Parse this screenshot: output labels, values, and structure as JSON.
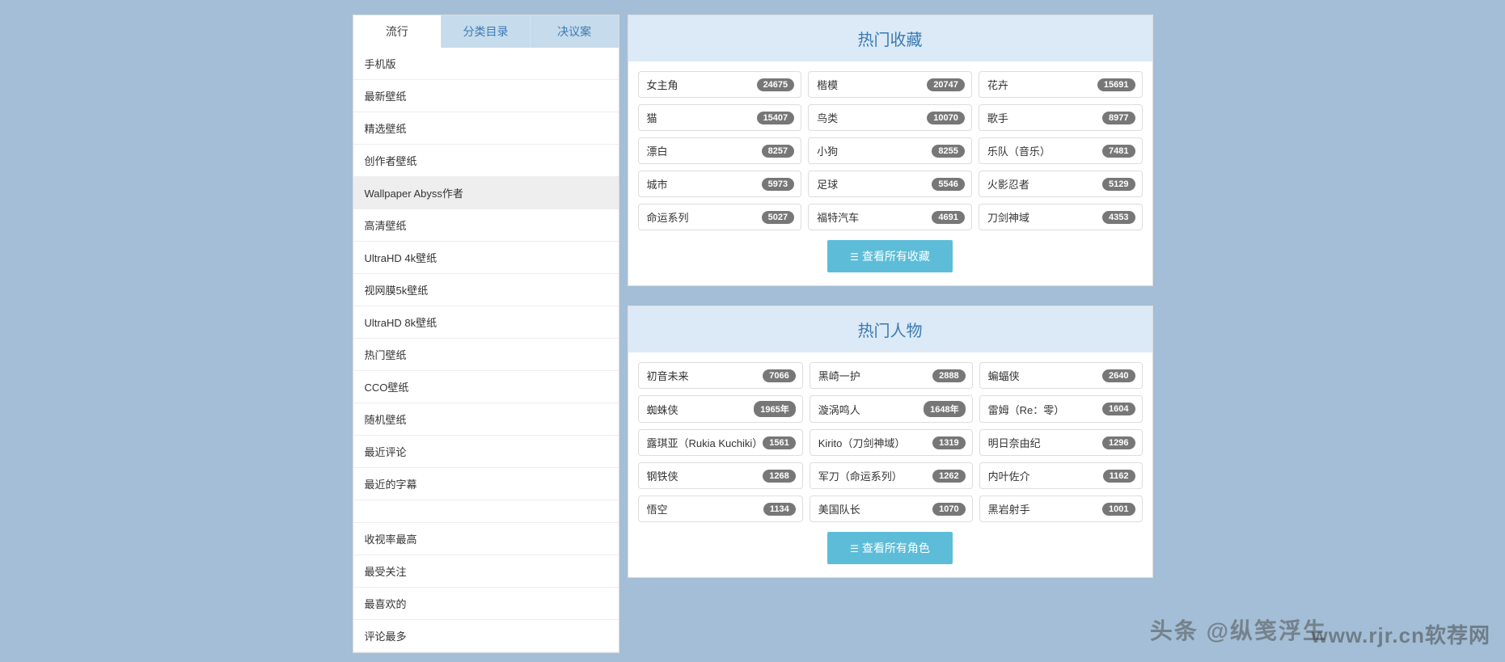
{
  "tabs": [
    {
      "label": "流行",
      "active": true
    },
    {
      "label": "分类目录",
      "active": false
    },
    {
      "label": "决议案",
      "active": false
    }
  ],
  "nav": [
    {
      "label": "手机版",
      "type": "item"
    },
    {
      "label": "最新壁纸",
      "type": "item"
    },
    {
      "label": "精选壁纸",
      "type": "item"
    },
    {
      "label": "创作者壁纸",
      "type": "item"
    },
    {
      "label": "Wallpaper Abyss作者",
      "type": "item",
      "hover": true
    },
    {
      "label": "高清壁纸",
      "type": "item"
    },
    {
      "label": "UltraHD 4k壁纸",
      "type": "item"
    },
    {
      "label": "视网膜5k壁纸",
      "type": "item"
    },
    {
      "label": "UltraHD 8k壁纸",
      "type": "item"
    },
    {
      "label": "热门壁纸",
      "type": "item"
    },
    {
      "label": "CCO壁纸",
      "type": "item"
    },
    {
      "label": "随机壁纸",
      "type": "item"
    },
    {
      "label": "最近评论",
      "type": "item"
    },
    {
      "label": "最近的字幕",
      "type": "item"
    },
    {
      "type": "spacer"
    },
    {
      "label": "收视率最高",
      "type": "item"
    },
    {
      "label": "最受关注",
      "type": "item"
    },
    {
      "label": "最喜欢的",
      "type": "item"
    },
    {
      "label": "评论最多",
      "type": "item"
    }
  ],
  "panels": [
    {
      "title": "热门收藏",
      "items": [
        {
          "label": "女主角",
          "count": "24675"
        },
        {
          "label": "楷模",
          "count": "20747"
        },
        {
          "label": "花卉",
          "count": "15691"
        },
        {
          "label": "猫",
          "count": "15407"
        },
        {
          "label": "鸟类",
          "count": "10070"
        },
        {
          "label": "歌手",
          "count": "8977"
        },
        {
          "label": "漂白",
          "count": "8257"
        },
        {
          "label": "小狗",
          "count": "8255"
        },
        {
          "label": "乐队（音乐）",
          "count": "7481"
        },
        {
          "label": "城市",
          "count": "5973"
        },
        {
          "label": "足球",
          "count": "5546"
        },
        {
          "label": "火影忍者",
          "count": "5129"
        },
        {
          "label": "命运系列",
          "count": "5027"
        },
        {
          "label": "福特汽车",
          "count": "4691"
        },
        {
          "label": "刀剑神域",
          "count": "4353"
        }
      ],
      "button": "查看所有收藏"
    },
    {
      "title": "热门人物",
      "items": [
        {
          "label": "初音未来",
          "count": "7066"
        },
        {
          "label": "黑崎一护",
          "count": "2888"
        },
        {
          "label": "蝙蝠侠",
          "count": "2640"
        },
        {
          "label": "蜘蛛侠",
          "count": "1965年"
        },
        {
          "label": "漩涡鸣人",
          "count": "1648年"
        },
        {
          "label": "雷姆（Re：零）",
          "count": "1604"
        },
        {
          "label": "露琪亚（Rukia Kuchiki）",
          "count": "1561"
        },
        {
          "label": "Kirito（刀剑神域）",
          "count": "1319"
        },
        {
          "label": "明日奈由纪",
          "count": "1296"
        },
        {
          "label": "钢铁侠",
          "count": "1268"
        },
        {
          "label": "军刀（命运系列）",
          "count": "1262"
        },
        {
          "label": "内叶佐介",
          "count": "1162"
        },
        {
          "label": "悟空",
          "count": "1134"
        },
        {
          "label": "美国队长",
          "count": "1070"
        },
        {
          "label": "黑岩射手",
          "count": "1001"
        }
      ],
      "button": "查看所有角色"
    }
  ],
  "watermark_left": "头条 @纵笺浮生",
  "watermark_right": "www.rjr.cn软荐网"
}
